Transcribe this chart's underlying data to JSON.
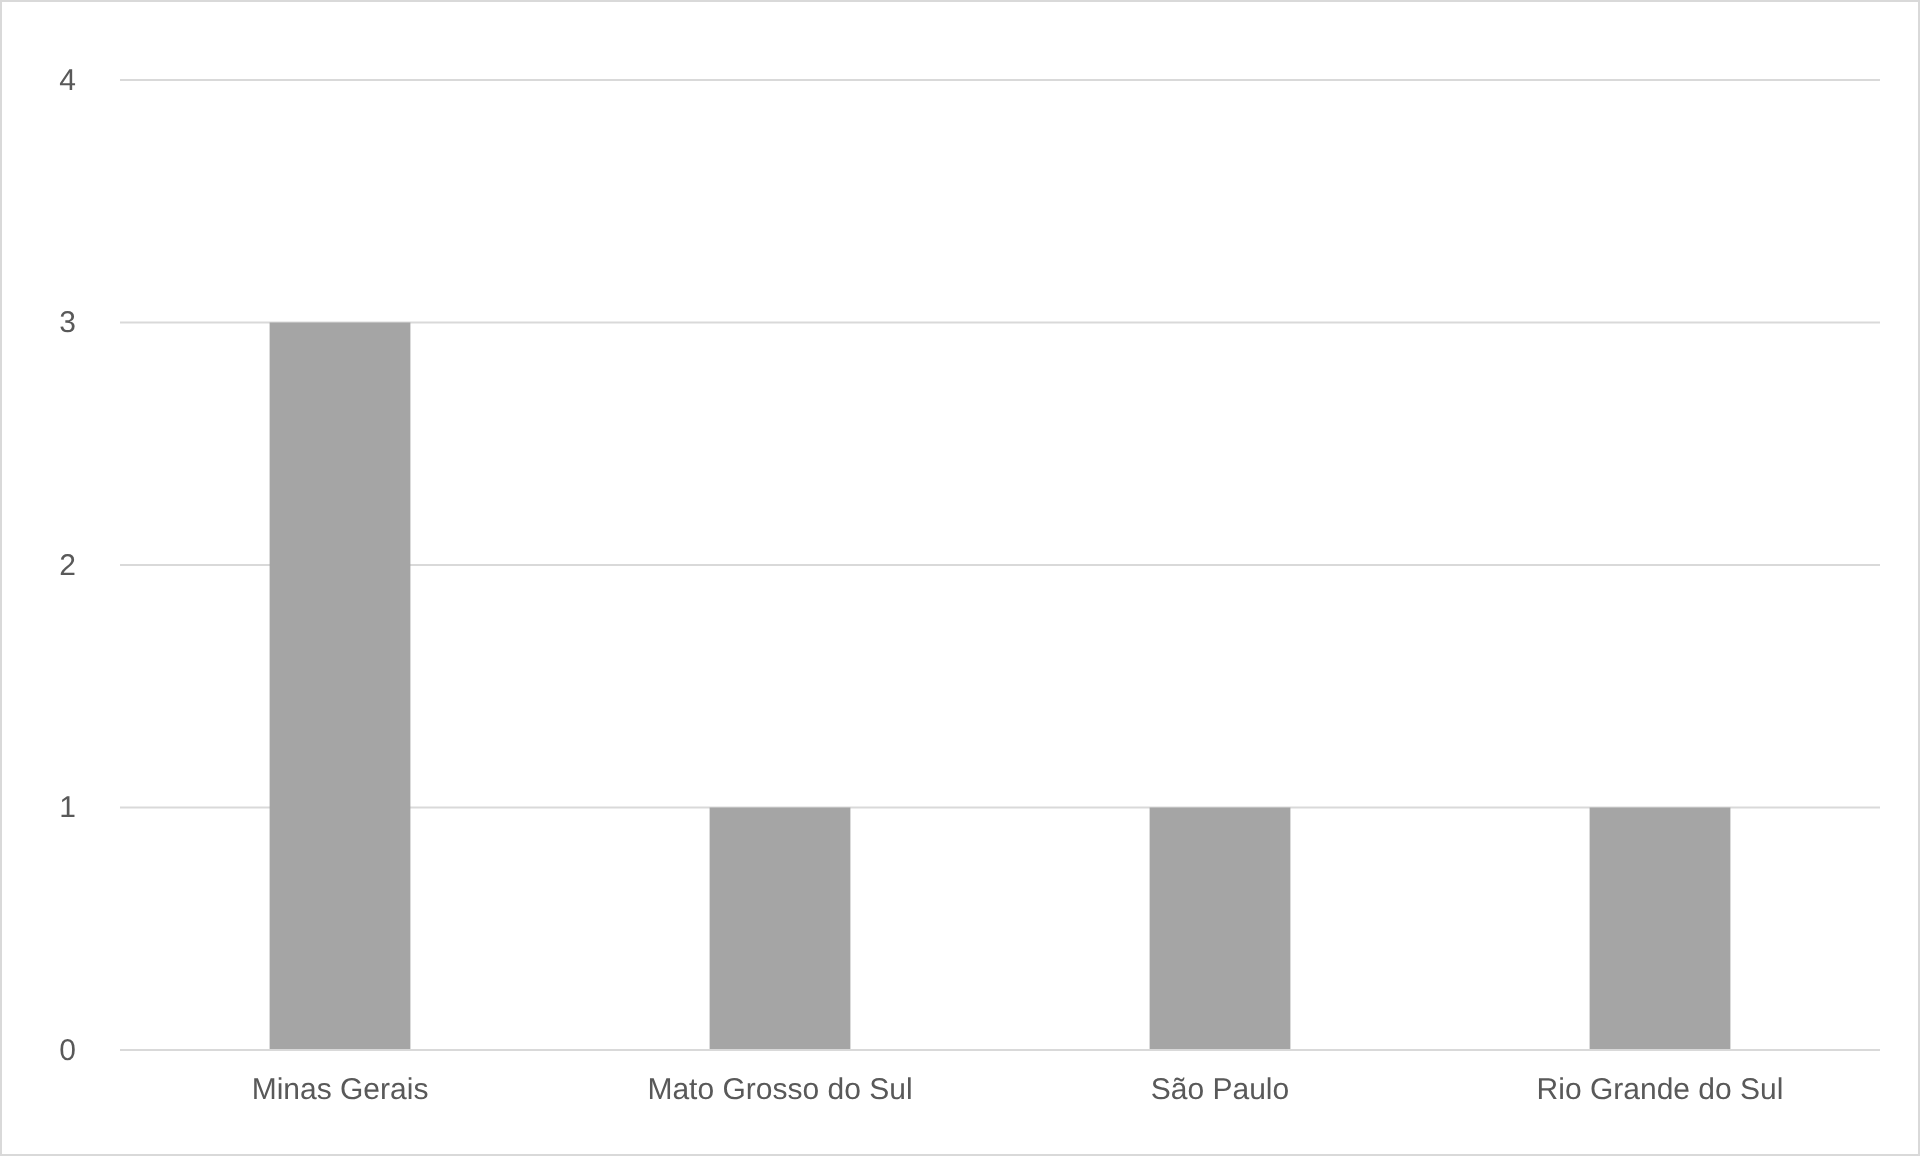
{
  "chart_data": {
    "type": "bar",
    "categories": [
      "Minas Gerais",
      "Mato Grosso do Sul",
      "São Paulo",
      "Rio Grande do Sul"
    ],
    "values": [
      3,
      1,
      1,
      1
    ],
    "color": "#a5a5a5",
    "ylim": [
      0,
      4
    ],
    "yticks": [
      0,
      1,
      2,
      3,
      4
    ],
    "grid": "y"
  }
}
